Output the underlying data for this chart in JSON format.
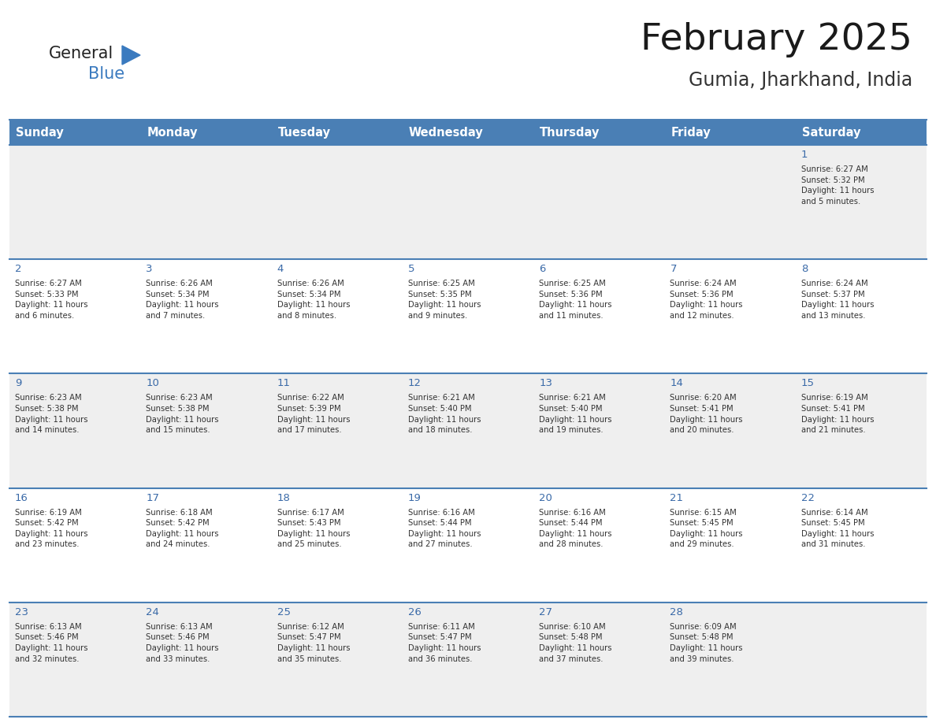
{
  "title": "February 2025",
  "subtitle": "Gumia, Jharkhand, India",
  "days_of_week": [
    "Sunday",
    "Monday",
    "Tuesday",
    "Wednesday",
    "Thursday",
    "Friday",
    "Saturday"
  ],
  "header_bg": "#4a7fb5",
  "header_text_color": "#ffffff",
  "row_bg_odd": "#efefef",
  "row_bg_even": "#ffffff",
  "day_num_color": "#3a6aa8",
  "text_color": "#333333",
  "border_color": "#4a7fb5",
  "logo_general_color": "#222222",
  "logo_blue_color": "#3a7abf",
  "logo_triangle_color": "#3a7abf",
  "calendar_data": [
    [
      null,
      null,
      null,
      null,
      null,
      null,
      {
        "day": 1,
        "sunrise": "6:27 AM",
        "sunset": "5:32 PM",
        "daylight_h": "11 hours",
        "daylight_m": "5 minutes."
      }
    ],
    [
      {
        "day": 2,
        "sunrise": "6:27 AM",
        "sunset": "5:33 PM",
        "daylight_h": "11 hours",
        "daylight_m": "6 minutes."
      },
      {
        "day": 3,
        "sunrise": "6:26 AM",
        "sunset": "5:34 PM",
        "daylight_h": "11 hours",
        "daylight_m": "7 minutes."
      },
      {
        "day": 4,
        "sunrise": "6:26 AM",
        "sunset": "5:34 PM",
        "daylight_h": "11 hours",
        "daylight_m": "8 minutes."
      },
      {
        "day": 5,
        "sunrise": "6:25 AM",
        "sunset": "5:35 PM",
        "daylight_h": "11 hours",
        "daylight_m": "9 minutes."
      },
      {
        "day": 6,
        "sunrise": "6:25 AM",
        "sunset": "5:36 PM",
        "daylight_h": "11 hours",
        "daylight_m": "11 minutes."
      },
      {
        "day": 7,
        "sunrise": "6:24 AM",
        "sunset": "5:36 PM",
        "daylight_h": "11 hours",
        "daylight_m": "12 minutes."
      },
      {
        "day": 8,
        "sunrise": "6:24 AM",
        "sunset": "5:37 PM",
        "daylight_h": "11 hours",
        "daylight_m": "13 minutes."
      }
    ],
    [
      {
        "day": 9,
        "sunrise": "6:23 AM",
        "sunset": "5:38 PM",
        "daylight_h": "11 hours",
        "daylight_m": "14 minutes."
      },
      {
        "day": 10,
        "sunrise": "6:23 AM",
        "sunset": "5:38 PM",
        "daylight_h": "11 hours",
        "daylight_m": "15 minutes."
      },
      {
        "day": 11,
        "sunrise": "6:22 AM",
        "sunset": "5:39 PM",
        "daylight_h": "11 hours",
        "daylight_m": "17 minutes."
      },
      {
        "day": 12,
        "sunrise": "6:21 AM",
        "sunset": "5:40 PM",
        "daylight_h": "11 hours",
        "daylight_m": "18 minutes."
      },
      {
        "day": 13,
        "sunrise": "6:21 AM",
        "sunset": "5:40 PM",
        "daylight_h": "11 hours",
        "daylight_m": "19 minutes."
      },
      {
        "day": 14,
        "sunrise": "6:20 AM",
        "sunset": "5:41 PM",
        "daylight_h": "11 hours",
        "daylight_m": "20 minutes."
      },
      {
        "day": 15,
        "sunrise": "6:19 AM",
        "sunset": "5:41 PM",
        "daylight_h": "11 hours",
        "daylight_m": "21 minutes."
      }
    ],
    [
      {
        "day": 16,
        "sunrise": "6:19 AM",
        "sunset": "5:42 PM",
        "daylight_h": "11 hours",
        "daylight_m": "23 minutes."
      },
      {
        "day": 17,
        "sunrise": "6:18 AM",
        "sunset": "5:42 PM",
        "daylight_h": "11 hours",
        "daylight_m": "24 minutes."
      },
      {
        "day": 18,
        "sunrise": "6:17 AM",
        "sunset": "5:43 PM",
        "daylight_h": "11 hours",
        "daylight_m": "25 minutes."
      },
      {
        "day": 19,
        "sunrise": "6:16 AM",
        "sunset": "5:44 PM",
        "daylight_h": "11 hours",
        "daylight_m": "27 minutes."
      },
      {
        "day": 20,
        "sunrise": "6:16 AM",
        "sunset": "5:44 PM",
        "daylight_h": "11 hours",
        "daylight_m": "28 minutes."
      },
      {
        "day": 21,
        "sunrise": "6:15 AM",
        "sunset": "5:45 PM",
        "daylight_h": "11 hours",
        "daylight_m": "29 minutes."
      },
      {
        "day": 22,
        "sunrise": "6:14 AM",
        "sunset": "5:45 PM",
        "daylight_h": "11 hours",
        "daylight_m": "31 minutes."
      }
    ],
    [
      {
        "day": 23,
        "sunrise": "6:13 AM",
        "sunset": "5:46 PM",
        "daylight_h": "11 hours",
        "daylight_m": "32 minutes."
      },
      {
        "day": 24,
        "sunrise": "6:13 AM",
        "sunset": "5:46 PM",
        "daylight_h": "11 hours",
        "daylight_m": "33 minutes."
      },
      {
        "day": 25,
        "sunrise": "6:12 AM",
        "sunset": "5:47 PM",
        "daylight_h": "11 hours",
        "daylight_m": "35 minutes."
      },
      {
        "day": 26,
        "sunrise": "6:11 AM",
        "sunset": "5:47 PM",
        "daylight_h": "11 hours",
        "daylight_m": "36 minutes."
      },
      {
        "day": 27,
        "sunrise": "6:10 AM",
        "sunset": "5:48 PM",
        "daylight_h": "11 hours",
        "daylight_m": "37 minutes."
      },
      {
        "day": 28,
        "sunrise": "6:09 AM",
        "sunset": "5:48 PM",
        "daylight_h": "11 hours",
        "daylight_m": "39 minutes."
      },
      null
    ]
  ],
  "title_fontsize": 34,
  "subtitle_fontsize": 17,
  "header_fontsize": 10.5,
  "day_num_fontsize": 9.5,
  "cell_text_fontsize": 7.2
}
